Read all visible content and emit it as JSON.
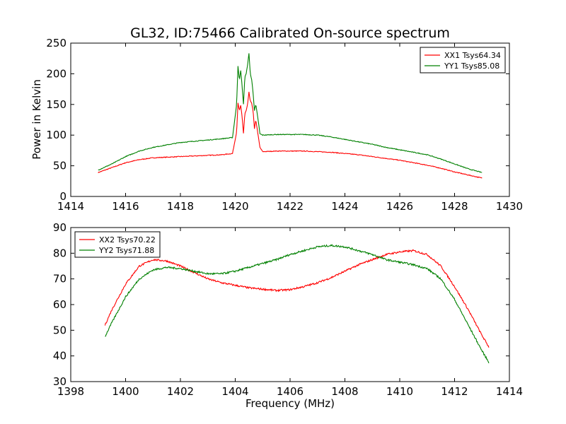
{
  "chart_data": [
    {
      "type": "line",
      "title": "GL32, ID:75466 Calibrated On-source spectrum",
      "xlabel": "",
      "ylabel": "Power in Kelvin",
      "xlim": [
        1414,
        1430
      ],
      "ylim": [
        0,
        250
      ],
      "xticks": [
        1414,
        1416,
        1418,
        1420,
        1422,
        1424,
        1426,
        1428,
        1430
      ],
      "yticks": [
        0,
        50,
        100,
        150,
        200,
        250
      ],
      "grid": false,
      "legend": "top-right",
      "series": [
        {
          "name": "XX1 Tsys64.34",
          "color": "#ff0000",
          "x": [
            1415.0,
            1415.5,
            1416.0,
            1416.5,
            1417.0,
            1417.5,
            1418.0,
            1418.5,
            1419.0,
            1419.5,
            1419.9,
            1420.05,
            1420.1,
            1420.15,
            1420.2,
            1420.25,
            1420.3,
            1420.35,
            1420.4,
            1420.45,
            1420.5,
            1420.55,
            1420.6,
            1420.65,
            1420.7,
            1420.75,
            1420.8,
            1420.85,
            1420.9,
            1421.0,
            1421.5,
            1422.0,
            1422.5,
            1423.0,
            1423.5,
            1424.0,
            1424.5,
            1425.0,
            1425.5,
            1426.0,
            1426.5,
            1427.0,
            1427.5,
            1428.0,
            1428.5,
            1429.0
          ],
          "y": [
            39,
            47,
            55,
            60,
            63,
            64,
            65,
            66,
            67,
            68,
            70,
            105,
            152,
            140,
            148,
            130,
            103,
            135,
            140,
            150,
            170,
            155,
            152,
            140,
            110,
            125,
            110,
            95,
            80,
            73,
            74,
            74,
            74,
            73,
            72,
            70,
            68,
            65,
            62,
            59,
            55,
            51,
            46,
            40,
            35,
            30
          ]
        },
        {
          "name": "YY1 Tsys85.08",
          "color": "#008000",
          "x": [
            1415.0,
            1415.5,
            1416.0,
            1416.5,
            1417.0,
            1417.5,
            1418.0,
            1418.5,
            1419.0,
            1419.5,
            1419.9,
            1420.05,
            1420.1,
            1420.15,
            1420.2,
            1420.25,
            1420.3,
            1420.35,
            1420.4,
            1420.45,
            1420.5,
            1420.55,
            1420.6,
            1420.65,
            1420.7,
            1420.75,
            1420.8,
            1420.85,
            1420.9,
            1421.0,
            1421.5,
            1422.0,
            1422.5,
            1423.0,
            1423.5,
            1424.0,
            1424.5,
            1425.0,
            1425.5,
            1426.0,
            1426.5,
            1427.0,
            1427.5,
            1428.0,
            1428.5,
            1429.0
          ],
          "y": [
            43,
            53,
            65,
            74,
            80,
            84,
            88,
            90,
            92,
            94,
            96,
            150,
            213,
            190,
            205,
            180,
            150,
            195,
            200,
            215,
            233,
            200,
            190,
            170,
            140,
            150,
            135,
            120,
            102,
            100,
            101,
            101,
            101,
            100,
            97,
            93,
            89,
            85,
            80,
            76,
            72,
            68,
            61,
            53,
            45,
            39
          ]
        }
      ]
    },
    {
      "type": "line",
      "title": "",
      "xlabel": "Frequency (MHz)",
      "ylabel": "",
      "xlim": [
        1398,
        1414
      ],
      "ylim": [
        30,
        90
      ],
      "xticks": [
        1398,
        1400,
        1402,
        1404,
        1406,
        1408,
        1410,
        1412,
        1414
      ],
      "yticks": [
        30,
        40,
        50,
        60,
        70,
        80,
        90
      ],
      "grid": false,
      "legend": "top-left",
      "series": [
        {
          "name": "XX2 Tsys70.22",
          "color": "#ff0000",
          "x": [
            1399.25,
            1399.5,
            1400.0,
            1400.5,
            1401.0,
            1401.5,
            1402.0,
            1402.5,
            1403.0,
            1403.5,
            1404.0,
            1404.5,
            1405.0,
            1405.5,
            1406.0,
            1406.5,
            1407.0,
            1407.5,
            1408.0,
            1408.5,
            1409.0,
            1409.5,
            1410.0,
            1410.5,
            1411.0,
            1411.5,
            1412.0,
            1412.5,
            1413.0,
            1413.25
          ],
          "y": [
            52,
            58,
            68,
            75,
            77.5,
            77,
            75,
            72.5,
            70,
            68.5,
            67.5,
            66.5,
            66,
            65.5,
            65.8,
            67,
            68.5,
            70.5,
            73,
            75.5,
            77.5,
            79.5,
            80.5,
            81,
            79.5,
            75,
            67,
            58,
            48,
            43.5
          ]
        },
        {
          "name": "YY2 Tsys71.88",
          "color": "#008000",
          "x": [
            1399.25,
            1399.5,
            1400.0,
            1400.5,
            1401.0,
            1401.5,
            1402.0,
            1402.5,
            1403.0,
            1403.5,
            1404.0,
            1404.5,
            1405.0,
            1405.5,
            1406.0,
            1406.5,
            1407.0,
            1407.5,
            1408.0,
            1408.5,
            1409.0,
            1409.5,
            1410.0,
            1410.5,
            1411.0,
            1411.5,
            1412.0,
            1412.5,
            1413.0,
            1413.25
          ],
          "y": [
            47.5,
            53,
            63,
            70,
            73.5,
            74.5,
            74,
            73,
            72,
            72,
            73,
            74.5,
            76,
            77.5,
            79.5,
            81,
            82.5,
            83,
            82.5,
            81,
            79.5,
            77.5,
            76.5,
            75.5,
            74,
            70,
            62,
            52,
            42,
            37.5
          ]
        }
      ]
    }
  ]
}
